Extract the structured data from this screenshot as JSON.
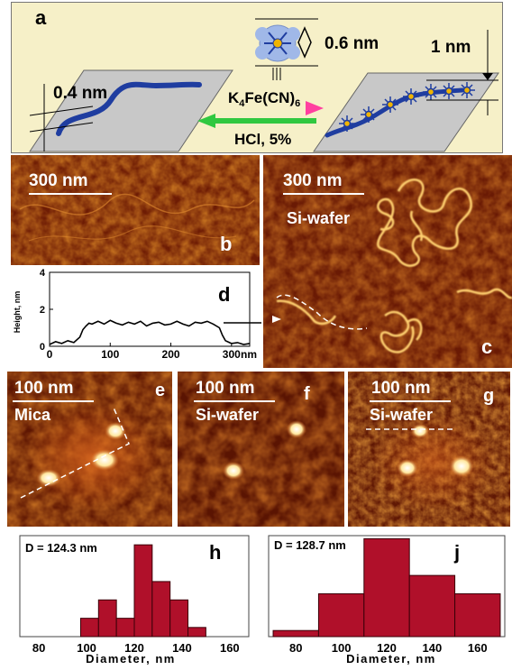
{
  "panel_a": {
    "label": "a",
    "height_left": "0.4 nm",
    "height_top": "0.6 nm",
    "height_right": "1 nm",
    "reagent_forward": "K",
    "reagent_forward_sub": "4",
    "reagent_forward_rest": "Fe(CN)",
    "reagent_forward_sub2": "6",
    "reagent_back": "HCl, 5%"
  },
  "panel_b": {
    "label": "b",
    "scale": "300 nm"
  },
  "panel_c": {
    "label": "c",
    "scale": "300 nm",
    "substrate": "Si-wafer"
  },
  "panel_d": {
    "label": "d",
    "chart_data": {
      "type": "line",
      "ylabel": "Height, nm",
      "xlabel": "nm",
      "xticks": [
        0,
        100,
        200,
        300
      ],
      "yticks": [
        0,
        2,
        4
      ],
      "xlim": [
        0,
        330
      ],
      "ylim": [
        0,
        4
      ],
      "x": [
        0,
        10,
        20,
        30,
        40,
        50,
        55,
        60,
        65,
        70,
        80,
        90,
        100,
        110,
        120,
        130,
        140,
        150,
        160,
        170,
        180,
        190,
        200,
        210,
        220,
        230,
        240,
        250,
        260,
        270,
        280,
        285,
        290,
        300,
        310,
        320,
        330
      ],
      "y": [
        0.1,
        0.25,
        0.15,
        0.3,
        0.2,
        0.5,
        0.9,
        1.1,
        1.25,
        1.2,
        1.35,
        1.2,
        1.4,
        1.25,
        1.15,
        1.3,
        1.2,
        1.35,
        1.1,
        1.25,
        1.3,
        1.15,
        1.2,
        1.35,
        1.2,
        1.1,
        1.3,
        1.25,
        1.35,
        1.2,
        1.0,
        0.6,
        0.3,
        0.15,
        0.2,
        0.1,
        0.15
      ]
    }
  },
  "panel_e": {
    "label": "e",
    "scale": "100 nm",
    "substrate": "Mica"
  },
  "panel_f": {
    "label": "f",
    "scale": "100 nm",
    "substrate": "Si-wafer"
  },
  "panel_g": {
    "label": "g",
    "scale": "100 nm",
    "substrate": "Si-wafer"
  },
  "panel_h": {
    "label": "h",
    "chart_data": {
      "type": "bar",
      "title": "D = 124.3 nm",
      "xlabel": "Diameter, nm",
      "xticks": [
        80,
        100,
        120,
        140,
        160
      ],
      "bin_starts": [
        90,
        97.5,
        105,
        112.5,
        120,
        127.5,
        135,
        142.5,
        150
      ],
      "bin_width": 7.5,
      "values": [
        0,
        2,
        4,
        2,
        10,
        6,
        4,
        1,
        0
      ],
      "xlim": [
        72,
        168
      ],
      "ylim": [
        0,
        11
      ],
      "color": "#b0102a"
    }
  },
  "panel_j": {
    "label": "j",
    "chart_data": {
      "type": "bar",
      "title": "D = 128.7 nm",
      "xlabel": "Diameter, nm",
      "xticks": [
        80,
        100,
        120,
        140,
        160
      ],
      "bin_starts": [
        70,
        90,
        110,
        130,
        150
      ],
      "bin_width": 20,
      "values": [
        1,
        7,
        16,
        10,
        7
      ],
      "xlim": [
        68,
        172
      ],
      "ylim": [
        0,
        16.5
      ],
      "color": "#b0102a"
    }
  }
}
